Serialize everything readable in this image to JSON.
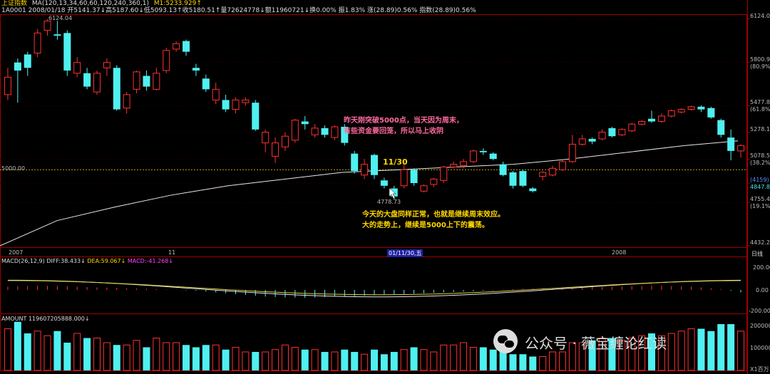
{
  "header": {
    "title": "上证指数",
    "ma_label": "MA(120,13,34,60,60,120,240,360,1)",
    "m1_label": "M1:5233.929↑",
    "info_line": "1A0001 2008/01/18  开5141.37↓高5187.60↓低5093.13↑收5180.51↑量72624778↓额11960721↓换0.00%  振1.83%  涨(28.89)0.56%  指数(28.89)0.56%"
  },
  "price_axis": {
    "labels": [
      {
        "text": "6124.0",
        "sub": ""
      },
      {
        "text": "5800.9",
        "sub": "(80.9%)"
      },
      {
        "text": "5477.8",
        "sub": "(61.8%)"
      },
      {
        "text": "5278.1",
        "sub": ""
      },
      {
        "text": "5078.5",
        "sub": "(38.2%)"
      },
      {
        "text": "(4159)",
        "sub": "4847.82"
      },
      {
        "text": "4755.4",
        "sub": "(19.1%)"
      },
      {
        "text": "4432.2",
        "sub": ""
      }
    ]
  },
  "hline_label": "5000.00",
  "high_label": "6124.04",
  "low_label": "4778.73",
  "date_bar": {
    "items": [
      "2007",
      "11",
      "01/11/30,五",
      "2008"
    ],
    "right": "日线"
  },
  "annotations": {
    "top": [
      "昨天刚突破5000点，当天因为周末，",
      "有些资金要回笼，所以马上收阴"
    ],
    "date": "11/30",
    "bottom": [
      "今天的大盘同样正常，也就是继续周末效应。",
      "大的走势上，继续是5000上下的震荡。"
    ]
  },
  "macd": {
    "label_main": "MACD(26,12,9)",
    "diff": "DIFF:38.433↓",
    "dea": "DEA:59.067↓",
    "macd": "MACD:-41.268↓",
    "axis": [
      "200.00",
      "0.00",
      "-200.00"
    ]
  },
  "amount": {
    "label": "AMOUNT 119607205888.000↓",
    "axis": [
      "200000",
      "100000",
      "X1百万"
    ]
  },
  "watermark": "公众号 · 薇宝缠论红读",
  "colors": {
    "up": "#ff3030",
    "down": "#4ff0f0",
    "ma": "#e8e8e8",
    "macd_diff": "#e8e8e8",
    "macd_dea": "#e0d040",
    "hline": "#d0a000"
  },
  "chart_data": {
    "type": "candlestick",
    "ylim": [
      4432.2,
      6160
    ],
    "candles": [
      {
        "o": 5560,
        "c": 5690,
        "h": 5760,
        "l": 5520
      },
      {
        "o": 5800,
        "c": 5740,
        "h": 5830,
        "l": 5500
      },
      {
        "o": 5860,
        "c": 5760,
        "h": 5880,
        "l": 5700
      },
      {
        "o": 5870,
        "c": 6020,
        "h": 6050,
        "l": 5840
      },
      {
        "o": 6040,
        "c": 6110,
        "h": 6124,
        "l": 6000
      },
      {
        "o": 6010,
        "c": 6000,
        "h": 6110,
        "l": 5970
      },
      {
        "o": 6020,
        "c": 5740,
        "h": 6040,
        "l": 5700
      },
      {
        "o": 5720,
        "c": 5800,
        "h": 5840,
        "l": 5690
      },
      {
        "o": 5720,
        "c": 5620,
        "h": 5760,
        "l": 5600
      },
      {
        "o": 5580,
        "c": 5720,
        "h": 5740,
        "l": 5560
      },
      {
        "o": 5760,
        "c": 5800,
        "h": 5830,
        "l": 5700
      },
      {
        "o": 5760,
        "c": 5450,
        "h": 5780,
        "l": 5440
      },
      {
        "o": 5460,
        "c": 5560,
        "h": 5580,
        "l": 5420
      },
      {
        "o": 5600,
        "c": 5730,
        "h": 5740,
        "l": 5570
      },
      {
        "o": 5700,
        "c": 5620,
        "h": 5740,
        "l": 5590
      },
      {
        "o": 5600,
        "c": 5720,
        "h": 5760,
        "l": 5590
      },
      {
        "o": 5740,
        "c": 5890,
        "h": 5910,
        "l": 5720
      },
      {
        "o": 5900,
        "c": 5940,
        "h": 5960,
        "l": 5880
      },
      {
        "o": 5960,
        "c": 5880,
        "h": 5970,
        "l": 5850
      },
      {
        "o": 5760,
        "c": 5740,
        "h": 5790,
        "l": 5700
      },
      {
        "o": 5680,
        "c": 5600,
        "h": 5710,
        "l": 5580
      },
      {
        "o": 5520,
        "c": 5600,
        "h": 5650,
        "l": 5490
      },
      {
        "o": 5520,
        "c": 5450,
        "h": 5560,
        "l": 5430
      },
      {
        "o": 5450,
        "c": 5520,
        "h": 5540,
        "l": 5420
      },
      {
        "o": 5500,
        "c": 5520,
        "h": 5540,
        "l": 5480
      },
      {
        "o": 5500,
        "c": 5300,
        "h": 5520,
        "l": 5290
      },
      {
        "o": 5200,
        "c": 5280,
        "h": 5300,
        "l": 5130
      },
      {
        "o": 5100,
        "c": 5200,
        "h": 5240,
        "l": 5050
      },
      {
        "o": 5170,
        "c": 5250,
        "h": 5280,
        "l": 5140
      },
      {
        "o": 5220,
        "c": 5370,
        "h": 5380,
        "l": 5200
      },
      {
        "o": 5360,
        "c": 5340,
        "h": 5400,
        "l": 5300
      },
      {
        "o": 5260,
        "c": 5310,
        "h": 5340,
        "l": 5240
      },
      {
        "o": 5310,
        "c": 5260,
        "h": 5330,
        "l": 5240
      },
      {
        "o": 5240,
        "c": 5320,
        "h": 5330,
        "l": 5220
      },
      {
        "o": 5320,
        "c": 5200,
        "h": 5340,
        "l": 5180
      },
      {
        "o": 5120,
        "c": 4990,
        "h": 5140,
        "l": 4970
      },
      {
        "o": 4960,
        "c": 5040,
        "h": 5080,
        "l": 4930
      },
      {
        "o": 5110,
        "c": 4960,
        "h": 5120,
        "l": 4930
      },
      {
        "o": 4920,
        "c": 4880,
        "h": 4940,
        "l": 4860
      },
      {
        "o": 4860,
        "c": 4800,
        "h": 4880,
        "l": 4778
      },
      {
        "o": 4880,
        "c": 5000,
        "h": 5070,
        "l": 4860
      },
      {
        "o": 5000,
        "c": 4900,
        "h": 5010,
        "l": 4880
      },
      {
        "o": 4840,
        "c": 4880,
        "h": 4890,
        "l": 4830
      },
      {
        "o": 4890,
        "c": 4930,
        "h": 4940,
        "l": 4870
      },
      {
        "o": 4920,
        "c": 5020,
        "h": 5030,
        "l": 4900
      },
      {
        "o": 5020,
        "c": 5040,
        "h": 5060,
        "l": 5010
      },
      {
        "o": 5030,
        "c": 5060,
        "h": 5080,
        "l": 5010
      },
      {
        "o": 5060,
        "c": 5140,
        "h": 5150,
        "l": 5050
      },
      {
        "o": 5140,
        "c": 5130,
        "h": 5160,
        "l": 5110
      },
      {
        "o": 5120,
        "c": 5080,
        "h": 5130,
        "l": 5070
      },
      {
        "o": 5040,
        "c": 4960,
        "h": 5060,
        "l": 4950
      },
      {
        "o": 4980,
        "c": 4880,
        "h": 4990,
        "l": 4860
      },
      {
        "o": 4990,
        "c": 4880,
        "h": 5000,
        "l": 4870
      },
      {
        "o": 4860,
        "c": 4840,
        "h": 4870,
        "l": 4830
      },
      {
        "o": 4950,
        "c": 4980,
        "h": 4990,
        "l": 4920
      },
      {
        "o": 4960,
        "c": 5010,
        "h": 5030,
        "l": 4950
      },
      {
        "o": 5000,
        "c": 5060,
        "h": 5070,
        "l": 4990
      },
      {
        "o": 5060,
        "c": 5190,
        "h": 5260,
        "l": 5050
      },
      {
        "o": 5190,
        "c": 5230,
        "h": 5260,
        "l": 5180
      },
      {
        "o": 5230,
        "c": 5210,
        "h": 5240,
        "l": 5190
      },
      {
        "o": 5230,
        "c": 5280,
        "h": 5300,
        "l": 5220
      },
      {
        "o": 5310,
        "c": 5250,
        "h": 5320,
        "l": 5240
      },
      {
        "o": 5260,
        "c": 5300,
        "h": 5310,
        "l": 5250
      },
      {
        "o": 5290,
        "c": 5340,
        "h": 5350,
        "l": 5280
      },
      {
        "o": 5340,
        "c": 5360,
        "h": 5370,
        "l": 5330
      },
      {
        "o": 5380,
        "c": 5360,
        "h": 5440,
        "l": 5350
      },
      {
        "o": 5360,
        "c": 5400,
        "h": 5420,
        "l": 5350
      },
      {
        "o": 5400,
        "c": 5440,
        "h": 5450,
        "l": 5390
      },
      {
        "o": 5430,
        "c": 5450,
        "h": 5460,
        "l": 5420
      },
      {
        "o": 5450,
        "c": 5470,
        "h": 5477,
        "l": 5440
      },
      {
        "o": 5470,
        "c": 5450,
        "h": 5480,
        "l": 5430
      },
      {
        "o": 5460,
        "c": 5390,
        "h": 5470,
        "l": 5380
      },
      {
        "o": 5370,
        "c": 5260,
        "h": 5380,
        "l": 5240
      },
      {
        "o": 5240,
        "c": 5140,
        "h": 5300,
        "l": 5070
      },
      {
        "o": 5140,
        "c": 5180,
        "h": 5190,
        "l": 5090
      }
    ],
    "ma": [
      [
        0,
        4432
      ],
      [
        80,
        4620
      ],
      [
        160,
        4720
      ],
      [
        240,
        4810
      ],
      [
        320,
        4880
      ],
      [
        400,
        4930
      ],
      [
        480,
        4980
      ],
      [
        560,
        5000
      ],
      [
        640,
        5020
      ],
      [
        720,
        5040
      ],
      [
        800,
        5080
      ],
      [
        880,
        5130
      ],
      [
        960,
        5180
      ],
      [
        1035,
        5215
      ]
    ],
    "macd_bars": [
      40,
      45,
      48,
      52,
      50,
      48,
      45,
      40,
      35,
      30,
      28,
      25,
      20,
      18,
      15,
      10,
      5,
      2,
      -5,
      -10,
      -20,
      -30,
      -40,
      -50,
      -60,
      -70,
      -80,
      -85,
      -90,
      -92,
      -95,
      -90,
      -85,
      -80,
      -78,
      -75,
      -70,
      -65,
      -60,
      -55,
      -50,
      -45,
      -40,
      -35,
      -30,
      -25,
      -20,
      -15,
      -10,
      -5,
      5,
      10,
      15,
      18,
      20,
      22,
      25,
      28,
      30,
      35,
      38,
      40,
      42,
      45,
      48,
      50,
      52,
      48,
      45,
      40,
      30,
      20,
      10,
      -10,
      -30
    ],
    "amount": [
      180,
      210,
      160,
      170,
      150,
      170,
      120,
      160,
      140,
      140,
      120,
      110,
      110,
      130,
      100,
      140,
      120,
      120,
      110,
      100,
      110,
      110,
      90,
      100,
      80,
      80,
      80,
      90,
      110,
      100,
      90,
      90,
      80,
      80,
      90,
      80,
      70,
      90,
      70,
      80,
      90,
      100,
      90,
      80,
      110,
      110,
      120,
      100,
      100,
      90,
      90,
      70,
      70,
      60,
      60,
      80,
      80,
      120,
      120,
      130,
      140,
      140,
      130,
      140,
      150,
      160,
      150,
      160,
      170,
      180,
      180,
      170,
      200,
      200,
      170
    ]
  }
}
